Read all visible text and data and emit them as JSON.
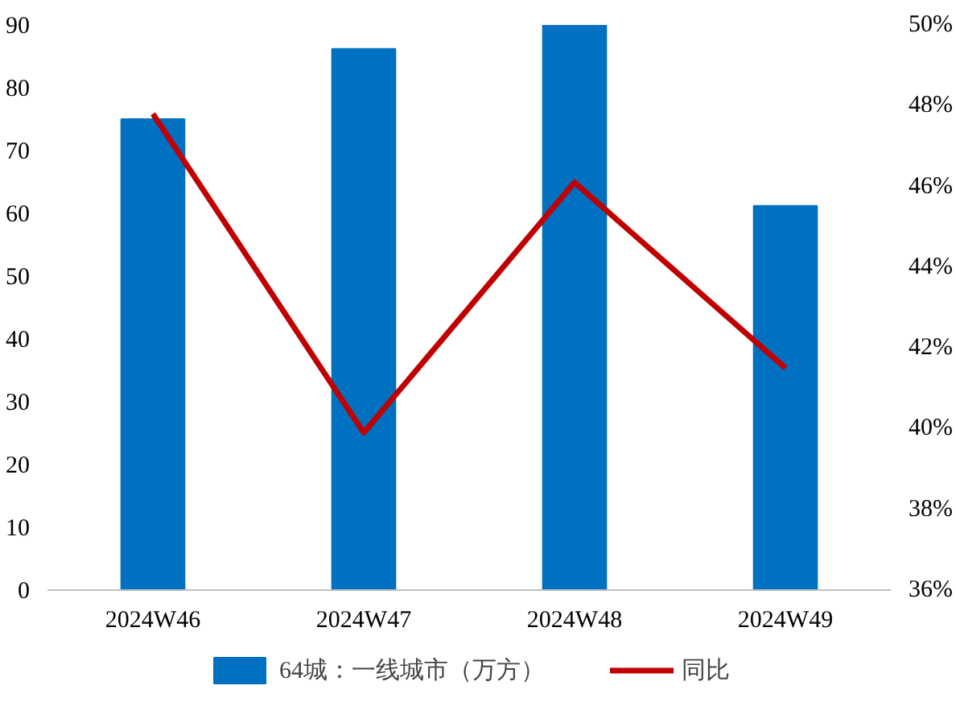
{
  "chart_data": {
    "type": "bar",
    "categories": [
      "2024W46",
      "2024W47",
      "2024W48",
      "2024W49"
    ],
    "series": [
      {
        "name": "64城：一线城市（万方）",
        "color": "#0070c0",
        "values": [
          75,
          86.2,
          90,
          61.2
        ]
      },
      {
        "name": "同比",
        "type": "line",
        "axis": "y2",
        "color": "#c00000",
        "values": [
          47.8,
          39.9,
          46.1,
          41.5
        ]
      }
    ],
    "ylim": [
      0,
      90
    ],
    "yticks": [
      0,
      10,
      20,
      30,
      40,
      50,
      60,
      70,
      80,
      90
    ],
    "y2lim": [
      36,
      50
    ],
    "y2ticks": [
      {
        "value": 36,
        "label": "36%"
      },
      {
        "value": 38,
        "label": "38%"
      },
      {
        "value": 40,
        "label": "40%"
      },
      {
        "value": 42,
        "label": "42%"
      },
      {
        "value": 44,
        "label": "44%"
      },
      {
        "value": 46,
        "label": "46%"
      },
      {
        "value": 48,
        "label": "48%"
      },
      {
        "value": 50,
        "label": "50%"
      }
    ],
    "grid": false,
    "legend": "bottom",
    "marker": "none",
    "line_style": "solid"
  }
}
